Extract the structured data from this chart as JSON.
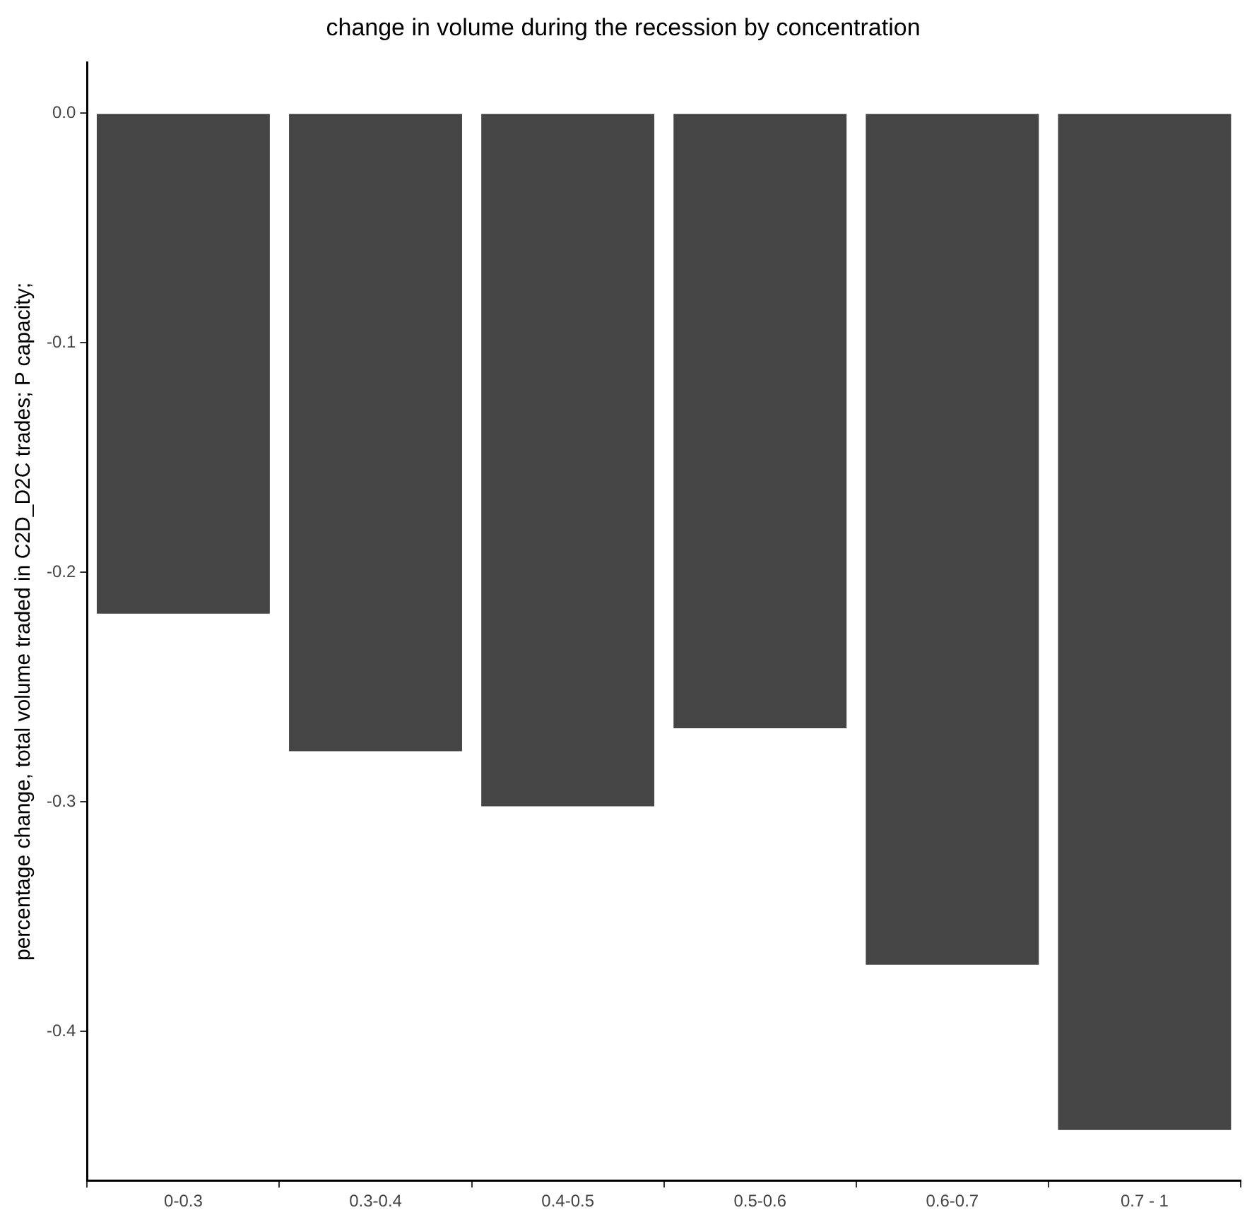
{
  "chart_data": {
    "type": "bar",
    "title": "change in volume during the recession by concentration",
    "ylabel": "percentage change, total volume traded in C2D_D2C trades; P capacity;",
    "categories": [
      "0-0.3",
      "0.3-0.4",
      "0.4-0.5",
      "0.5-0.6",
      "0.6-0.7",
      "0.7 - 1"
    ],
    "values": [
      -0.218,
      -0.278,
      -0.302,
      -0.268,
      -0.371,
      -0.443
    ],
    "color": "#454545",
    "ylim": [
      -0.465,
      0.022
    ],
    "yticks": [
      {
        "value": -0.4,
        "label": "-0.4"
      },
      {
        "value": -0.3,
        "label": "-0.3"
      },
      {
        "value": -0.2,
        "label": "-0.2"
      },
      {
        "value": -0.1,
        "label": "-0.1"
      },
      {
        "value": 0,
        "label": "0.0"
      }
    ],
    "grid": false,
    "legend": false
  }
}
